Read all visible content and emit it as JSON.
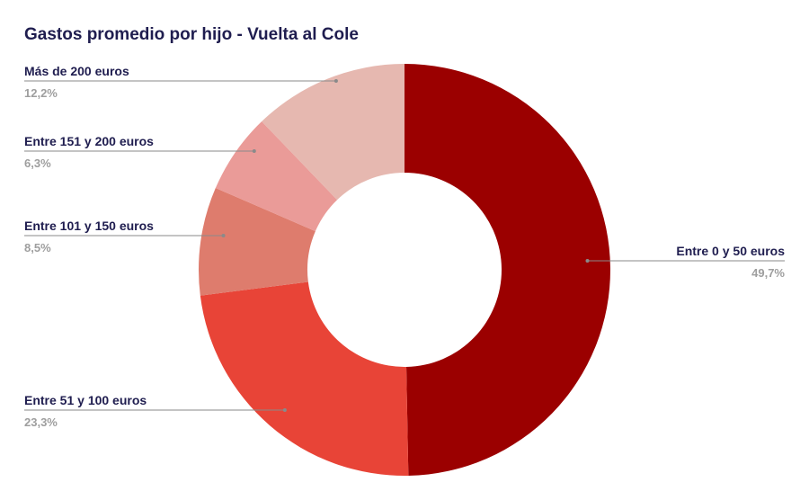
{
  "chart_data": {
    "type": "pie",
    "title": "Gastos promedio por hijo - Vuelta al Cole",
    "donut": true,
    "slices": [
      {
        "label": "Entre 0 y 50 euros",
        "value_text": "49,7%",
        "value": 49.7,
        "color": "#9b0000"
      },
      {
        "label": "Entre 51 y 100 euros",
        "value_text": "23,3%",
        "value": 23.3,
        "color": "#e84437"
      },
      {
        "label": "Entre 101 y 150 euros",
        "value_text": "8,5%",
        "value": 8.5,
        "color": "#de7c6d"
      },
      {
        "label": "Entre 151 y 200 euros",
        "value_text": "6,3%",
        "value": 6.3,
        "color": "#ea9b98"
      },
      {
        "label": "Más de 200 euros",
        "value_text": "12,2%",
        "value": 12.2,
        "color": "#e6b8b0"
      }
    ]
  }
}
